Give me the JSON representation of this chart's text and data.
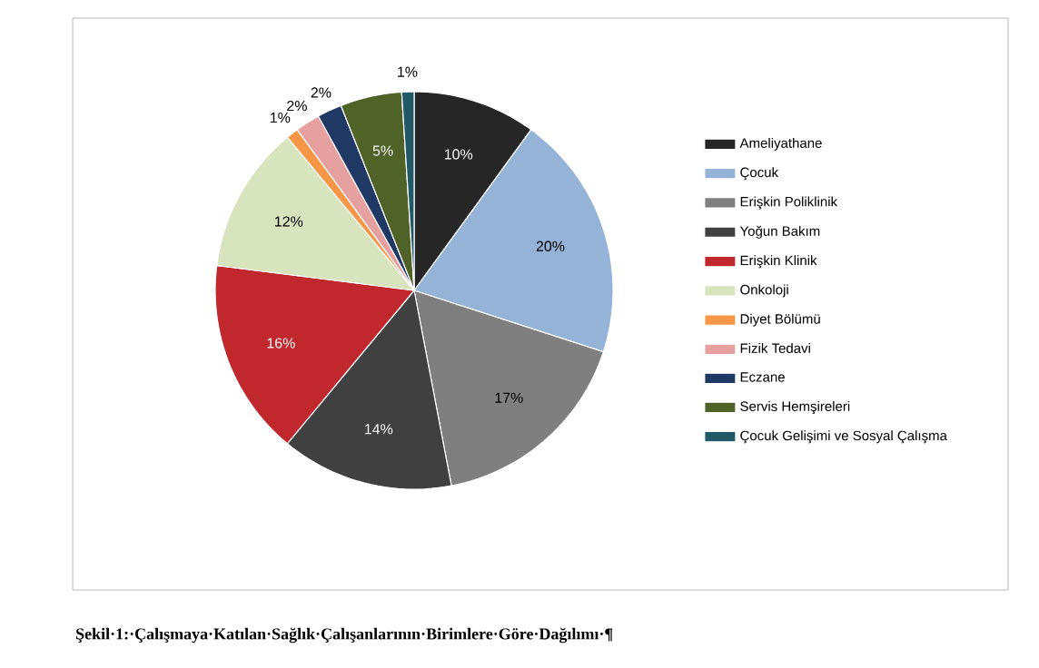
{
  "chart_data": {
    "type": "pie",
    "categories": [
      "Ameliyathane",
      "Çocuk",
      "Erişkin Poliklinik",
      "Yoğun Bakım",
      "Erişkin Klinik",
      "Onkoloji",
      "Diyet Bölümü",
      "Fizik Tedavi",
      "Eczane",
      "Servis Hemşireleri",
      "Çocuk Gelişimi ve Sosyal Çalışma"
    ],
    "values": [
      10,
      20,
      17,
      14,
      16,
      12,
      1,
      2,
      2,
      5,
      1
    ],
    "colors": [
      "#262626",
      "#95b3d7",
      "#7f7f7f",
      "#404040",
      "#c0282d",
      "#d7e4bd",
      "#f79646",
      "#e6a0a0",
      "#1f3864",
      "#4f6228",
      "#215967"
    ],
    "value_labels": [
      "10%",
      "20%",
      "17%",
      "14%",
      "16%",
      "12%",
      "1%",
      "2%",
      "2%",
      "5%",
      "1%"
    ],
    "legend": "right",
    "annotations": [
      "Şekil·1:·Çalışmaya·Katılan·Sağlık·Çalışanlarının·Birimlere·Göre·Dağılımı·¶"
    ]
  }
}
